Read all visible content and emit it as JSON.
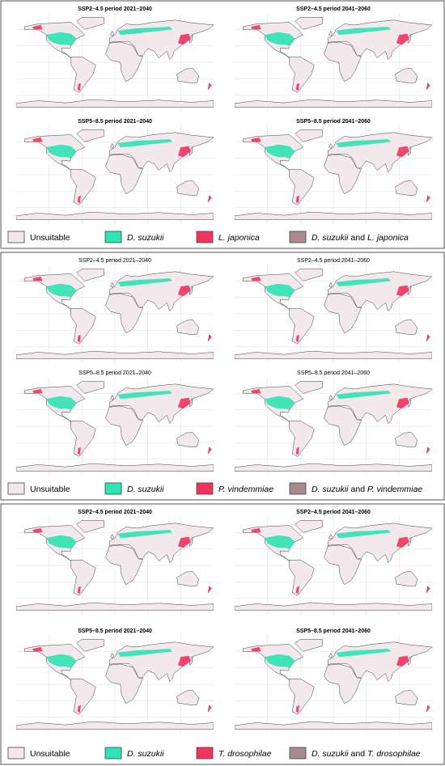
{
  "panels": [
    {
      "title_bold": true,
      "maps": [
        {
          "title": "SSP2–4.5 period 2021–2040"
        },
        {
          "title": "SSP2–4.5 period 2041–2060"
        },
        {
          "title": "SSP5–8.5 period 2021–2040"
        },
        {
          "title": "SSP5–8.5 period 2041–2060"
        }
      ],
      "legend": [
        {
          "color": "#f3e9ec",
          "parts": [
            {
              "text": "Unsuitable",
              "italic": false
            }
          ]
        },
        {
          "color": "#2ee3b4",
          "parts": [
            {
              "text": "D. suzukii",
              "italic": true
            }
          ]
        },
        {
          "color": "#f2335f",
          "parts": [
            {
              "text": "L. japonica",
              "italic": true
            }
          ]
        },
        {
          "color": "#a88a8a",
          "parts": [
            {
              "text": "D. suzukii",
              "italic": true
            },
            {
              "text": "and",
              "italic": false
            },
            {
              "text": "L. japonica",
              "italic": true
            }
          ]
        }
      ]
    },
    {
      "title_bold": false,
      "maps": [
        {
          "title": "SSP2–4.5 period 2021–2040"
        },
        {
          "title": "SSP2–4.5 period 2041–2060"
        },
        {
          "title": "SSP5–8.5 period 2021–2040"
        },
        {
          "title": "SSP5–8.5 period 2041–2060"
        }
      ],
      "legend": [
        {
          "color": "#f3e9ec",
          "parts": [
            {
              "text": "Unsuitable",
              "italic": false
            }
          ]
        },
        {
          "color": "#2ee3b4",
          "parts": [
            {
              "text": "D. suzukii",
              "italic": true
            }
          ]
        },
        {
          "color": "#f2335f",
          "parts": [
            {
              "text": "P. vindemmiae",
              "italic": true
            }
          ]
        },
        {
          "color": "#a88a8a",
          "parts": [
            {
              "text": "D. suzukii",
              "italic": true
            },
            {
              "text": "and",
              "italic": false
            },
            {
              "text": "P. vindemmiae",
              "italic": true
            }
          ]
        }
      ]
    },
    {
      "title_bold": true,
      "maps": [
        {
          "title": "SSP2–4.5 period 2021–2040"
        },
        {
          "title": "SSP2–4.5 period 2041–2060"
        },
        {
          "title": "SSP5–8.5 period 2021–2040"
        },
        {
          "title": "SSP5–8.5 period 2041–2060"
        }
      ],
      "legend": [
        {
          "color": "#f3e9ec",
          "parts": [
            {
              "text": "Unsuitable",
              "italic": false
            }
          ]
        },
        {
          "color": "#2ee3b4",
          "parts": [
            {
              "text": "D. suzukii",
              "italic": true
            }
          ]
        },
        {
          "color": "#f2335f",
          "parts": [
            {
              "text": "T. drosophilae",
              "italic": true
            }
          ]
        },
        {
          "color": "#a88a8a",
          "parts": [
            {
              "text": "D. suzukii",
              "italic": true
            },
            {
              "text": "and",
              "italic": false
            },
            {
              "text": "T. drosophilae",
              "italic": true
            }
          ]
        }
      ]
    }
  ]
}
